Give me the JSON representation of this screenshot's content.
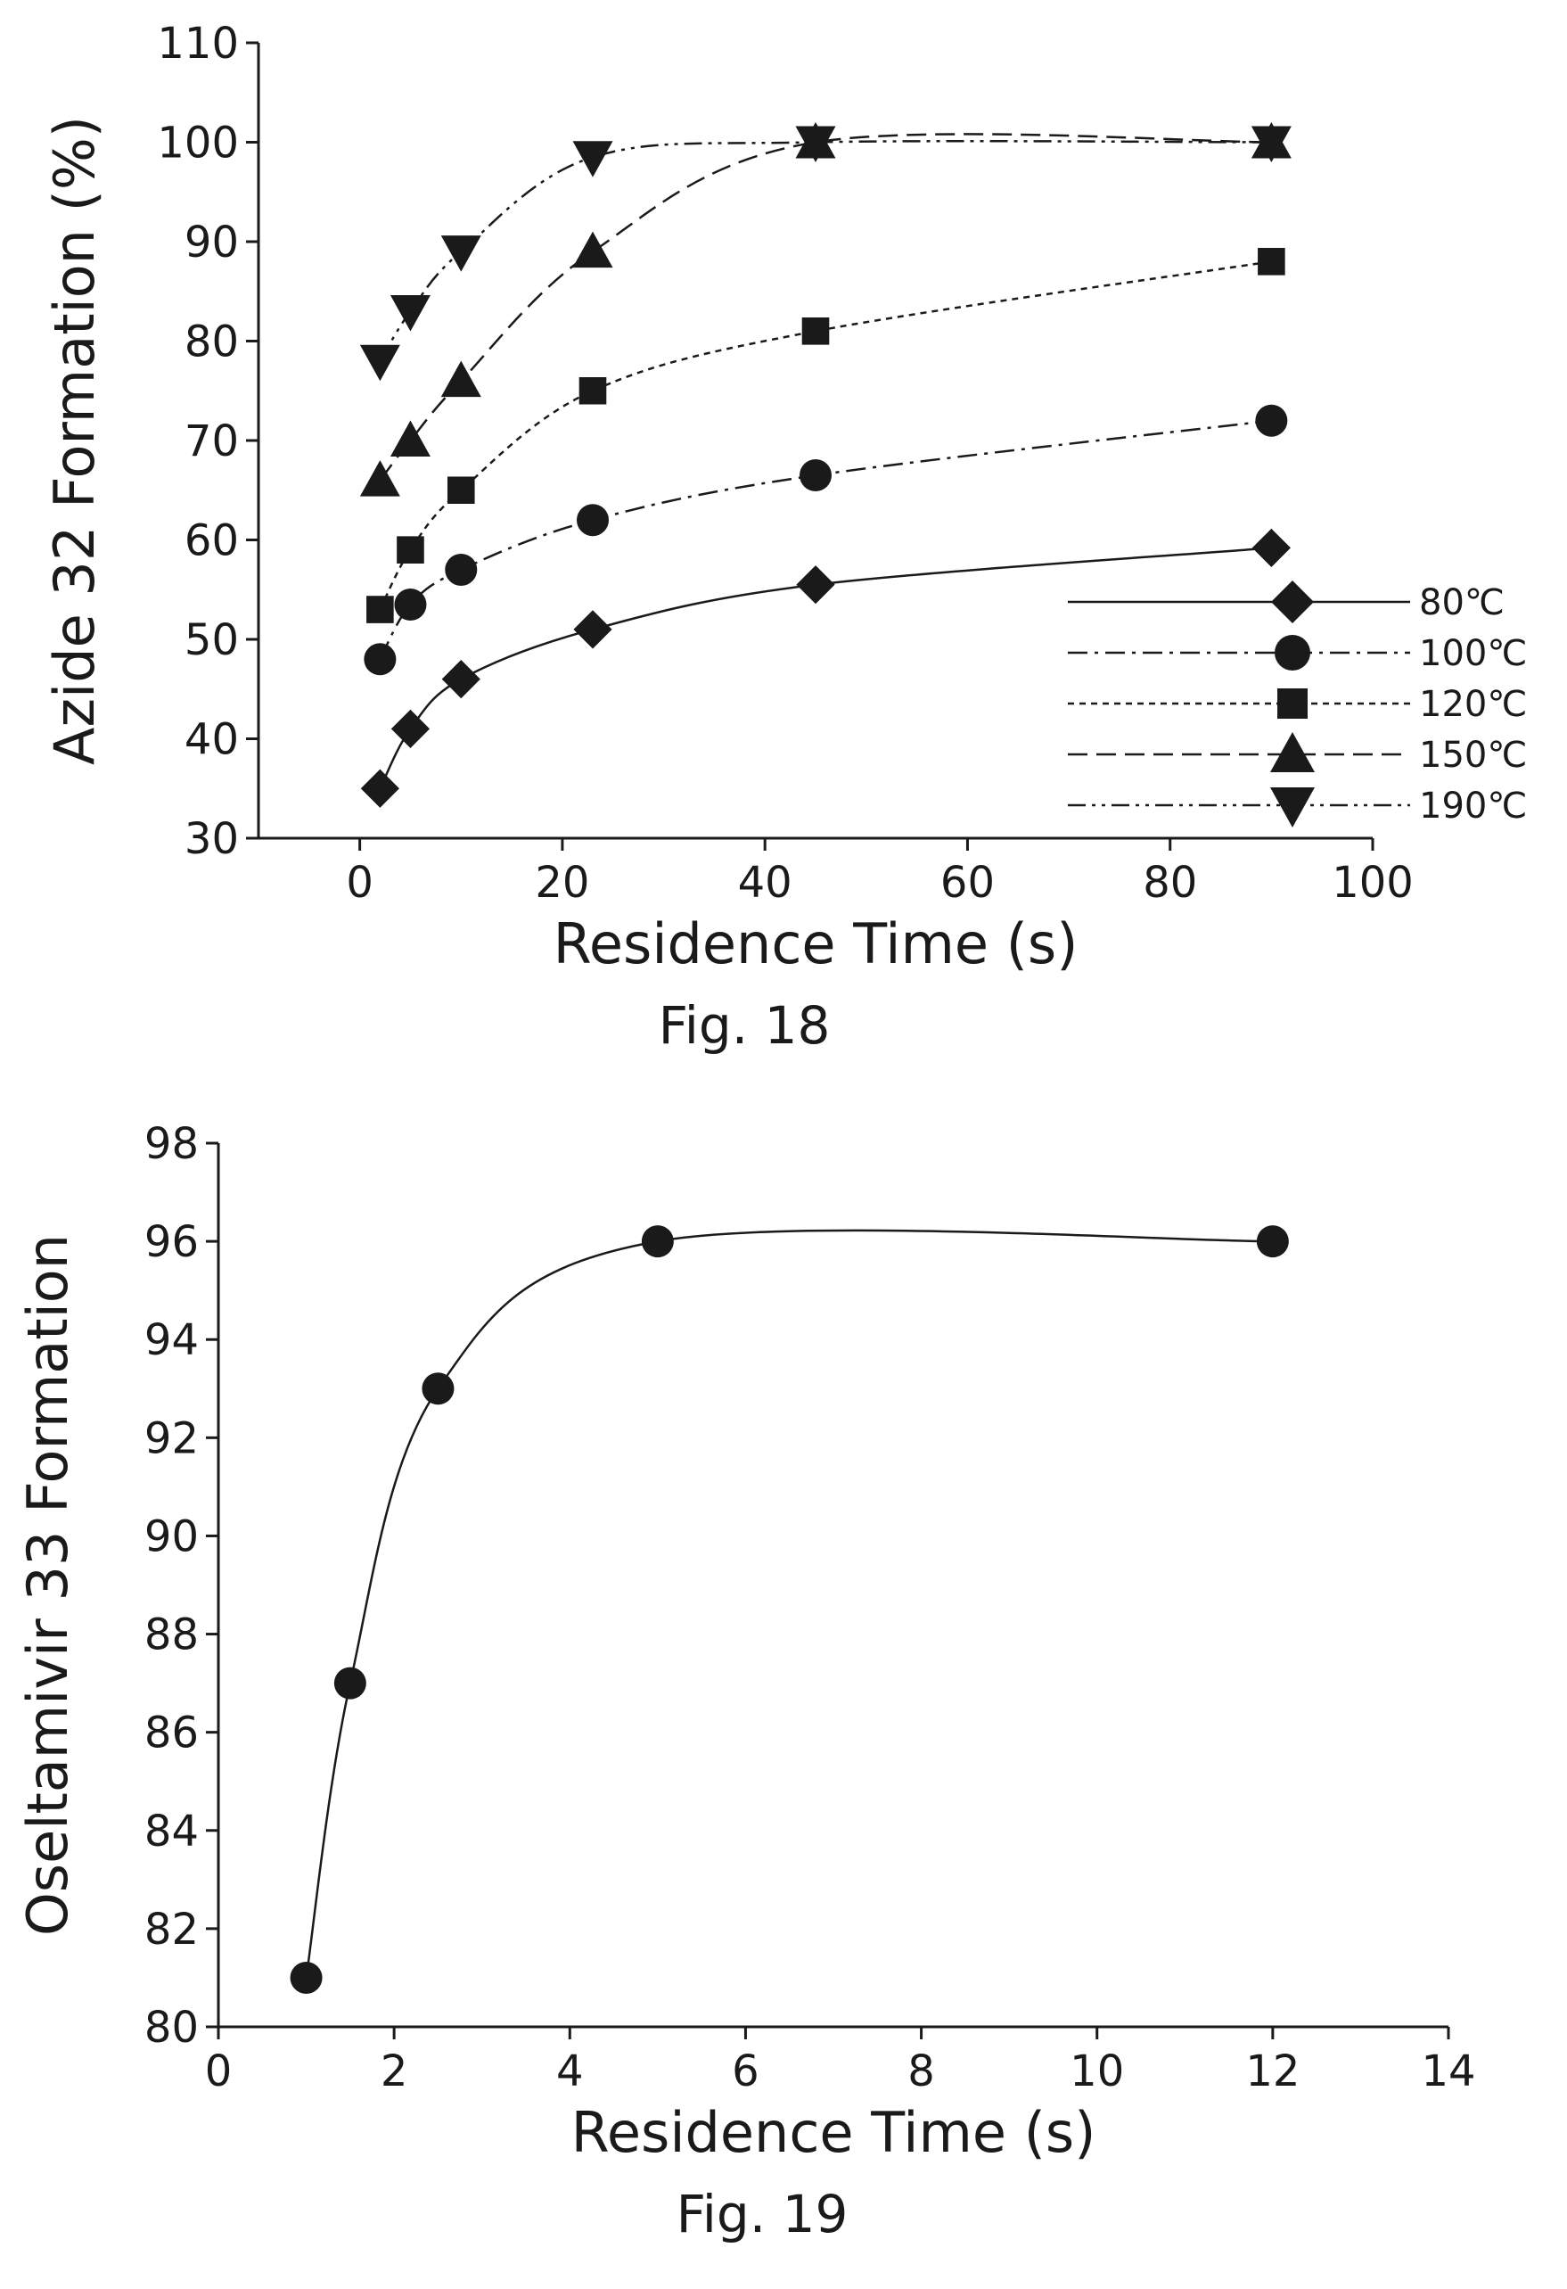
{
  "chart_data": [
    {
      "type": "line",
      "caption": "Fig. 18",
      "xlabel": "Residence Time (s)",
      "ylabel": "Azide 32 Formation (%)",
      "xlim": [
        -10,
        100
      ],
      "ylim": [
        30,
        110
      ],
      "xticks": [
        "0",
        "20",
        "40",
        "60",
        "80",
        "100"
      ],
      "yticks": [
        "30",
        "40",
        "50",
        "60",
        "70",
        "80",
        "90",
        "100",
        "110"
      ],
      "legend_position": "lower-right",
      "series": [
        {
          "name": "80℃",
          "marker": "diamond",
          "dash": "solid",
          "x": [
            2,
            5,
            10,
            23,
            45,
            90
          ],
          "y": [
            35,
            41,
            46,
            51,
            55.5,
            59.2
          ]
        },
        {
          "name": "100℃",
          "marker": "circle",
          "dash": "dashdot",
          "x": [
            2,
            5,
            10,
            23,
            45,
            90
          ],
          "y": [
            48,
            53.5,
            57,
            62,
            66.5,
            72
          ]
        },
        {
          "name": "120℃",
          "marker": "square",
          "dash": "dotted",
          "x": [
            2,
            5,
            10,
            23,
            45,
            90
          ],
          "y": [
            53,
            59,
            65,
            75,
            81,
            88
          ]
        },
        {
          "name": "150℃",
          "marker": "triangle-up",
          "dash": "dashed",
          "x": [
            2,
            5,
            10,
            23,
            45,
            90
          ],
          "y": [
            66,
            70,
            76,
            89,
            100,
            100
          ]
        },
        {
          "name": "190℃",
          "marker": "triangle-down",
          "dash": "dashdotdot",
          "x": [
            2,
            5,
            10,
            23,
            45,
            90
          ],
          "y": [
            78,
            83,
            89,
            98.5,
            100,
            100
          ]
        }
      ]
    },
    {
      "type": "line",
      "caption": "Fig. 19",
      "xlabel": "Residence Time (s)",
      "ylabel": "Oseltamivir 33 Formation",
      "xlim": [
        0,
        14
      ],
      "ylim": [
        80,
        98
      ],
      "xticks": [
        "0",
        "2",
        "4",
        "6",
        "8",
        "10",
        "12",
        "14"
      ],
      "yticks": [
        "80",
        "82",
        "84",
        "86",
        "88",
        "90",
        "92",
        "94",
        "96",
        "98"
      ],
      "series": [
        {
          "marker": "circle",
          "dash": "solid",
          "x": [
            1,
            1.5,
            2.5,
            5,
            12
          ],
          "y": [
            81,
            87,
            93,
            96,
            96
          ]
        }
      ]
    }
  ]
}
